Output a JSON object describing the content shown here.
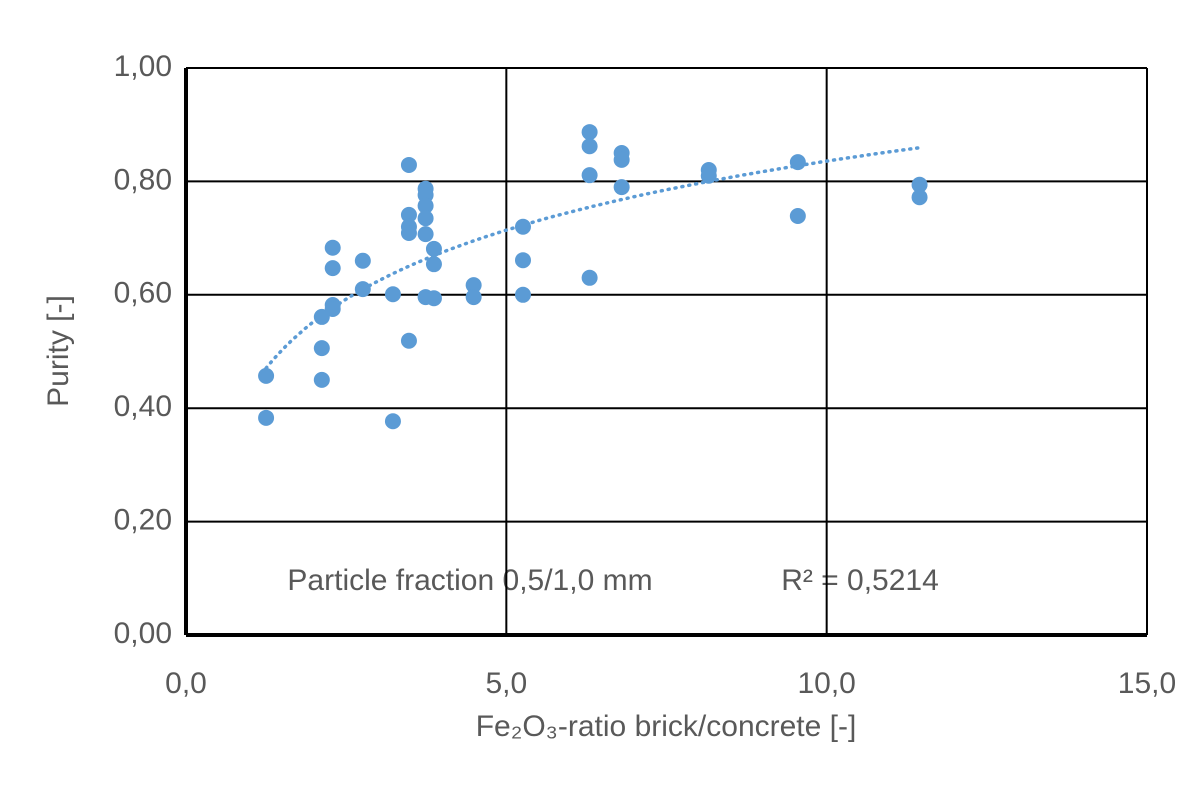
{
  "chart_data": {
    "type": "scatter",
    "xlabel": "Fe₂O₃-ratio brick/concrete [-]",
    "ylabel": "Purity [-]",
    "annotations": [
      "Particle fraction 0,5/1,0 mm",
      "R² = 0,5214"
    ],
    "xlim": [
      0,
      15
    ],
    "ylim": [
      0,
      1
    ],
    "xticks": [
      {
        "value": 0,
        "label": "0,0"
      },
      {
        "value": 5,
        "label": "5,0"
      },
      {
        "value": 10,
        "label": "10,0"
      },
      {
        "value": 15,
        "label": "15,0"
      }
    ],
    "yticks": [
      {
        "value": 0,
        "label": "0,00"
      },
      {
        "value": 0.2,
        "label": "0,20"
      },
      {
        "value": 0.4,
        "label": "0,40"
      },
      {
        "value": 0.6,
        "label": "0,60"
      },
      {
        "value": 0.8,
        "label": "0,80"
      },
      {
        "value": 1,
        "label": "1,00"
      }
    ],
    "grid": true,
    "color": "#5b9bd5",
    "trendline": {
      "type": "logarithmic",
      "style": "dotted"
    },
    "x": [
      1.25,
      1.25,
      2.12,
      2.12,
      2.12,
      2.29,
      2.29,
      2.29,
      2.29,
      2.76,
      2.76,
      3.23,
      3.23,
      3.48,
      3.48,
      3.48,
      3.48,
      3.48,
      3.74,
      3.74,
      3.74,
      3.74,
      3.74,
      3.74,
      3.87,
      3.87,
      3.87,
      4.49,
      4.49,
      5.26,
      5.26,
      5.26,
      6.3,
      6.3,
      6.3,
      6.3,
      6.8,
      6.8,
      6.8,
      8.16,
      8.16,
      9.55,
      9.55,
      11.45,
      11.45
    ],
    "values": [
      0.457,
      0.383,
      0.506,
      0.45,
      0.561,
      0.582,
      0.575,
      0.647,
      0.683,
      0.66,
      0.61,
      0.601,
      0.377,
      0.829,
      0.741,
      0.72,
      0.709,
      0.519,
      0.787,
      0.776,
      0.757,
      0.735,
      0.707,
      0.596,
      0.681,
      0.654,
      0.594,
      0.617,
      0.596,
      0.72,
      0.661,
      0.6,
      0.887,
      0.862,
      0.811,
      0.63,
      0.85,
      0.838,
      0.79,
      0.82,
      0.81,
      0.834,
      0.739,
      0.794,
      0.772
    ]
  }
}
